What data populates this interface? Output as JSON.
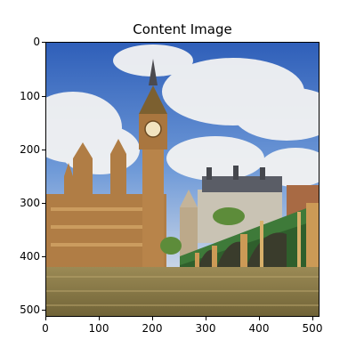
{
  "figure": {
    "title": "Content Image",
    "y_ticks": [
      "0",
      "100",
      "200",
      "300",
      "400",
      "500"
    ],
    "x_ticks": [
      "0",
      "100",
      "200",
      "300",
      "400",
      "500"
    ]
  },
  "image": {
    "subject": "Big Ben and Westminster Bridge, London",
    "sky_color": "#3f6fc4",
    "cloud_color": "#f2f2f2",
    "water_color": "#8c7a47",
    "stone_color": "#b88a4d",
    "bridge_green": "#3f7d3a"
  }
}
